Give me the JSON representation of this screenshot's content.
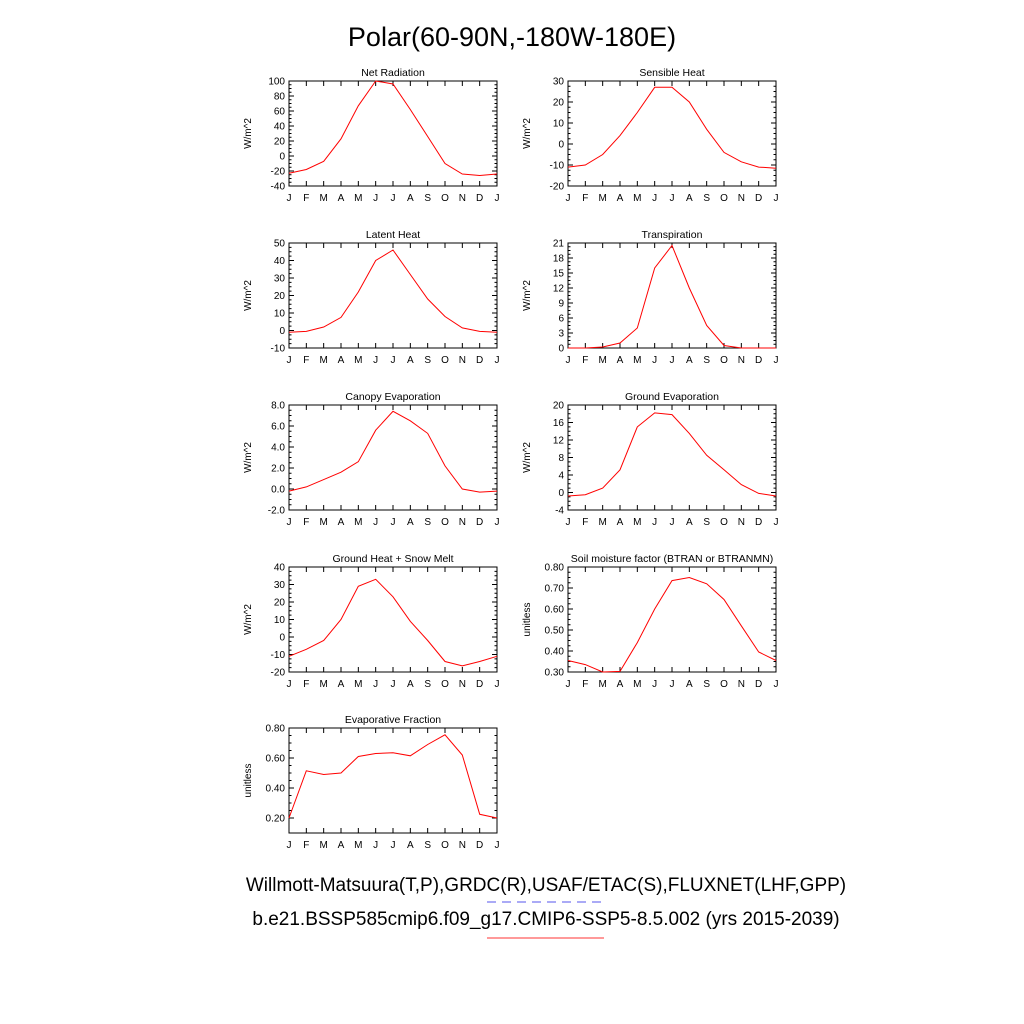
{
  "title": "Polar(60-90N,-180W-180E)",
  "footer": {
    "line1": "Willmott-Matsuura(T,P),GRDC(R),USAF/ETAC(S),FLUXNET(LHF,GPP)",
    "line2": "b.e21.BSSP585cmip6.f09_g17.CMIP6-SSP5-8.5.002 (yrs 2015-2039)",
    "line1_color": "#5555ee",
    "line2_color": "#ff3333"
  },
  "chart_data": [
    {
      "type": "line",
      "title": "Net Radiation",
      "ylabel": "W/m^2",
      "categories": [
        "J",
        "F",
        "M",
        "A",
        "M",
        "J",
        "J",
        "A",
        "S",
        "O",
        "N",
        "D",
        "J"
      ],
      "ylim": [
        -40,
        100
      ],
      "yticks": [
        -40,
        -20,
        0,
        20,
        40,
        60,
        80,
        100
      ],
      "ytick_labels": [
        "-40",
        "-20",
        "0",
        "20",
        "40",
        "60",
        "80",
        "100"
      ],
      "series": [
        {
          "values": [
            -23,
            -18,
            -7,
            23,
            67,
            100,
            96,
            62,
            26,
            -10,
            -24,
            -26,
            -24
          ],
          "color": "#ff0000"
        }
      ]
    },
    {
      "type": "line",
      "title": "Sensible Heat",
      "ylabel": "W/m^2",
      "categories": [
        "J",
        "F",
        "M",
        "A",
        "M",
        "J",
        "J",
        "A",
        "S",
        "O",
        "N",
        "D",
        "J"
      ],
      "ylim": [
        -20,
        30
      ],
      "yticks": [
        -20,
        -10,
        0,
        10,
        20,
        30
      ],
      "ytick_labels": [
        "-20",
        "-10",
        "0",
        "10",
        "20",
        "30"
      ],
      "series": [
        {
          "values": [
            -11,
            -10,
            -5,
            4,
            15,
            27,
            27,
            20,
            7,
            -4,
            -8.5,
            -11,
            -11.5
          ],
          "color": "#ff0000"
        }
      ]
    },
    {
      "type": "line",
      "title": "Latent Heat",
      "ylabel": "W/m^2",
      "categories": [
        "J",
        "F",
        "M",
        "A",
        "M",
        "J",
        "J",
        "A",
        "S",
        "O",
        "N",
        "D",
        "J"
      ],
      "ylim": [
        -10,
        50
      ],
      "yticks": [
        -10,
        0,
        10,
        20,
        30,
        40,
        50
      ],
      "ytick_labels": [
        "-10",
        "0",
        "10",
        "20",
        "30",
        "40",
        "50"
      ],
      "series": [
        {
          "values": [
            -1,
            -0.5,
            2,
            7.5,
            22,
            40,
            46,
            32,
            18,
            8,
            1.5,
            -0.5,
            -1
          ],
          "color": "#ff0000"
        }
      ]
    },
    {
      "type": "line",
      "title": "Transpiration",
      "ylabel": "W/m^2",
      "categories": [
        "J",
        "F",
        "M",
        "A",
        "M",
        "J",
        "J",
        "A",
        "S",
        "O",
        "N",
        "D",
        "J"
      ],
      "ylim": [
        0,
        21
      ],
      "yticks": [
        0,
        3,
        6,
        9,
        12,
        15,
        18,
        21
      ],
      "ytick_labels": [
        "0",
        "3",
        "6",
        "9",
        "12",
        "15",
        "18",
        "21"
      ],
      "series": [
        {
          "values": [
            0,
            0,
            0.2,
            1,
            4,
            16,
            20.5,
            12,
            4.5,
            0.5,
            0,
            0,
            0
          ],
          "color": "#ff0000"
        }
      ]
    },
    {
      "type": "line",
      "title": "Canopy Evaporation",
      "ylabel": "W/m^2",
      "categories": [
        "J",
        "F",
        "M",
        "A",
        "M",
        "J",
        "J",
        "A",
        "S",
        "O",
        "N",
        "D",
        "J"
      ],
      "ylim": [
        -2,
        8
      ],
      "yticks": [
        -2,
        0,
        2,
        4,
        6,
        8
      ],
      "ytick_labels": [
        "-2.0",
        "0.0",
        "2.0",
        "4.0",
        "6.0",
        "8.0"
      ],
      "series": [
        {
          "values": [
            -0.2,
            0.2,
            0.9,
            1.6,
            2.6,
            5.6,
            7.4,
            6.5,
            5.3,
            2.2,
            0,
            -0.3,
            -0.2
          ],
          "color": "#ff0000"
        }
      ]
    },
    {
      "type": "line",
      "title": "Ground Evaporation",
      "ylabel": "W/m^2",
      "categories": [
        "J",
        "F",
        "M",
        "A",
        "M",
        "J",
        "J",
        "A",
        "S",
        "O",
        "N",
        "D",
        "J"
      ],
      "ylim": [
        -4,
        20
      ],
      "yticks": [
        -4,
        0,
        4,
        8,
        12,
        16,
        20
      ],
      "ytick_labels": [
        "-4",
        "0",
        "4",
        "8",
        "12",
        "16",
        "20"
      ],
      "series": [
        {
          "values": [
            -0.8,
            -0.5,
            1,
            5.2,
            15,
            18.2,
            17.8,
            13.5,
            8.5,
            5.2,
            1.8,
            -0.2,
            -0.8
          ],
          "color": "#ff0000"
        }
      ]
    },
    {
      "type": "line",
      "title": "Ground Heat + Snow Melt",
      "ylabel": "W/m^2",
      "categories": [
        "J",
        "F",
        "M",
        "A",
        "M",
        "J",
        "J",
        "A",
        "S",
        "O",
        "N",
        "D",
        "J"
      ],
      "ylim": [
        -20,
        40
      ],
      "yticks": [
        -20,
        -10,
        0,
        10,
        20,
        30,
        40
      ],
      "ytick_labels": [
        "-20",
        "-10",
        "0",
        "10",
        "20",
        "30",
        "40"
      ],
      "series": [
        {
          "values": [
            -11,
            -7,
            -2,
            10,
            29,
            33,
            23,
            9,
            -2,
            -14,
            -16.5,
            -14,
            -11
          ],
          "color": "#ff0000"
        }
      ]
    },
    {
      "type": "line",
      "title": "Soil moisture factor (BTRAN or BTRANMN)",
      "ylabel": "unitless",
      "categories": [
        "J",
        "F",
        "M",
        "A",
        "M",
        "J",
        "J",
        "A",
        "S",
        "O",
        "N",
        "D",
        "J"
      ],
      "ylim": [
        0.3,
        0.8
      ],
      "yticks": [
        0.3,
        0.4,
        0.5,
        0.6,
        0.7,
        0.8
      ],
      "ytick_labels": [
        "0.30",
        "0.40",
        "0.50",
        "0.60",
        "0.70",
        "0.80"
      ],
      "series": [
        {
          "values": [
            0.355,
            0.335,
            0.3,
            0.303,
            0.44,
            0.6,
            0.735,
            0.75,
            0.72,
            0.645,
            0.52,
            0.395,
            0.355
          ],
          "color": "#ff0000"
        }
      ]
    },
    {
      "type": "line",
      "title": "Evaporative Fraction",
      "ylabel": "unitless",
      "categories": [
        "J",
        "F",
        "M",
        "A",
        "M",
        "J",
        "J",
        "A",
        "S",
        "O",
        "N",
        "D",
        "J"
      ],
      "ylim": [
        0.1,
        0.8
      ],
      "yticks": [
        0.2,
        0.4,
        0.6,
        0.8
      ],
      "ytick_labels": [
        "0.20",
        "0.40",
        "0.60",
        "0.80"
      ],
      "series": [
        {
          "values": [
            0.2,
            0.515,
            0.49,
            0.5,
            0.61,
            0.63,
            0.635,
            0.615,
            0.69,
            0.755,
            0.62,
            0.225,
            0.2
          ],
          "color": "#ff0000"
        }
      ]
    }
  ]
}
